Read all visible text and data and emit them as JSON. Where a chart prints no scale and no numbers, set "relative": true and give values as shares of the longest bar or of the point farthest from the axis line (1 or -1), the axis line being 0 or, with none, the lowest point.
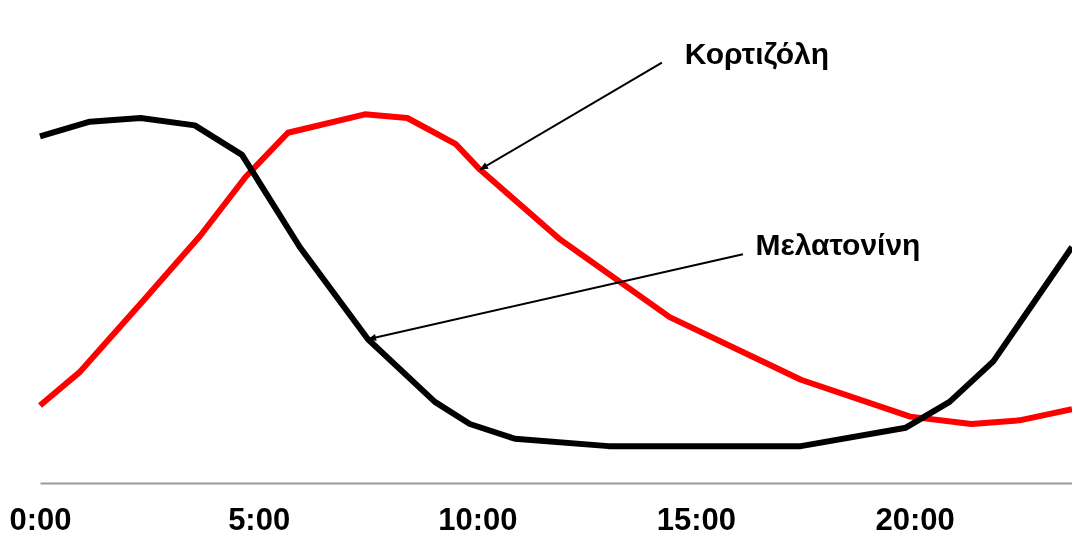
{
  "chart_data": {
    "type": "line",
    "relative": true,
    "x": [
      0,
      0.9,
      2.4,
      3.66,
      4.7,
      5.67,
      7.43,
      8.4,
      9.5,
      10.06,
      11.9,
      14.4,
      17.4,
      19.9,
      21.3,
      22.4,
      23.6
    ],
    "series": [
      {
        "color": "#ff0000",
        "values": [
          0.21,
          0.3,
          0.5,
          0.67,
          0.83,
          0.95,
          1.0,
          0.99,
          0.92,
          0.85,
          0.66,
          0.45,
          0.28,
          0.18,
          0.16,
          0.17,
          0.2
        ]
      },
      {
        "color": "#000000",
        "x": [
          0,
          1.14,
          2.3,
          3.54,
          4.62,
          5.94,
          7.5,
          9.03,
          9.83,
          10.86,
          13.0,
          17.4,
          19.8,
          20.8,
          21.8,
          23.6
        ],
        "values": [
          0.94,
          0.98,
          0.99,
          0.97,
          0.89,
          0.64,
          0.39,
          0.22,
          0.16,
          0.12,
          0.1,
          0.1,
          0.15,
          0.22,
          0.33,
          0.64
        ]
      }
    ],
    "xlim": [
      0,
      23.6
    ],
    "xticks": [
      {
        "value": 0,
        "label": "0:00"
      },
      {
        "value": 5,
        "label": "5:00"
      },
      {
        "value": 10,
        "label": "10:00"
      },
      {
        "value": 15,
        "label": "15:00"
      },
      {
        "value": 20,
        "label": "20:00"
      }
    ],
    "annotations": [
      {
        "text": "Κορτιζόλη",
        "x": 10.06,
        "y": 0.85
      },
      {
        "text": "Μελατονίνη",
        "x": 7.5,
        "y": 0.39
      }
    ],
    "grid": false,
    "line_style": "solid",
    "marker": "none"
  }
}
